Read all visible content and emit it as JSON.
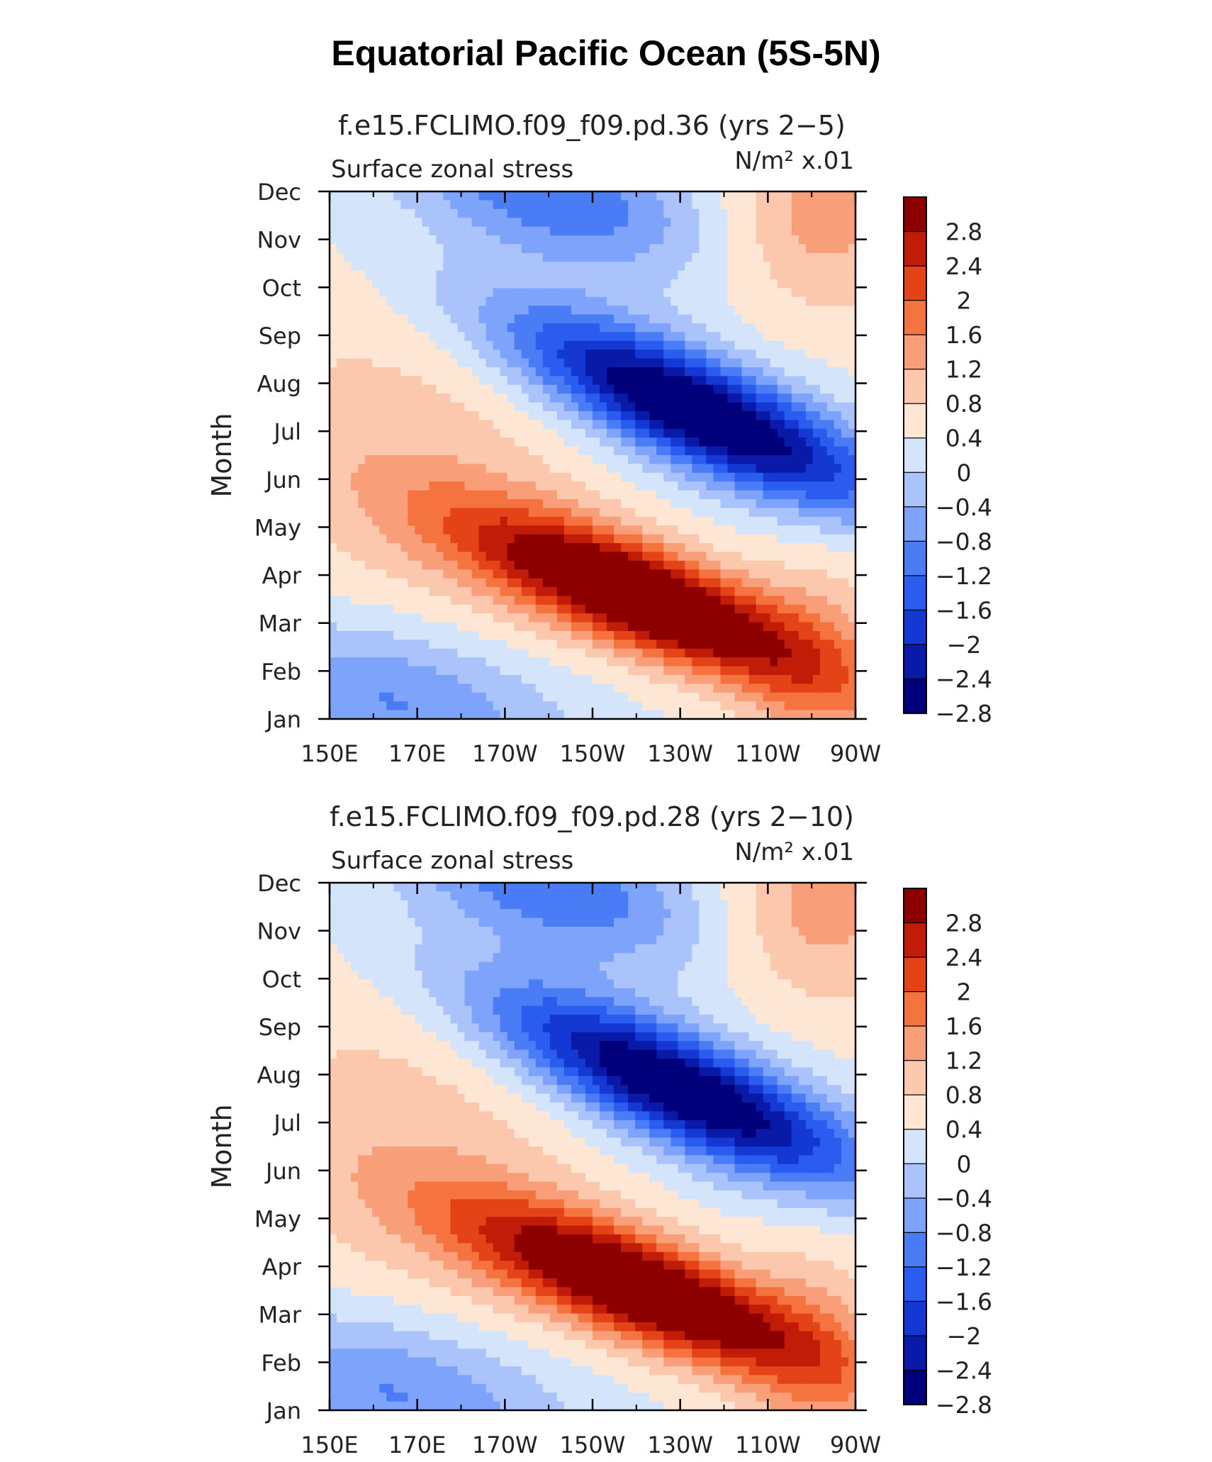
{
  "title": "Equatorial Pacific Ocean (5S-5N)",
  "colors": {
    "levels": [
      "#00007a",
      "#0a1aa8",
      "#1438d2",
      "#2a5cf0",
      "#4a7cf6",
      "#7da4fa",
      "#aac4fb",
      "#d4e5fb",
      "#fde6d4",
      "#fbc7ad",
      "#f89e78",
      "#f4733f",
      "#e44317",
      "#c01c08",
      "#8c0000"
    ]
  },
  "chart_data": [
    {
      "type": "heatmap",
      "title": "f.e15.FCLIMO.f09_f09.pd.36 (yrs 2−5)",
      "subtitle_left": "Surface zonal stress",
      "units": "N/m² x.01",
      "ylabel": "Month",
      "x_ticks": [
        "150E",
        "170E",
        "170W",
        "150W",
        "130W",
        "110W",
        "90W"
      ],
      "y_ticks": [
        "Jan",
        "Feb",
        "Mar",
        "Apr",
        "May",
        "Jun",
        "Jul",
        "Aug",
        "Sep",
        "Oct",
        "Nov",
        "Dec"
      ],
      "colorbar_levels": [
        "2.8",
        "2.4",
        "2",
        "1.6",
        "1.2",
        "0.8",
        "0.4",
        "0",
        "−0.4",
        "−0.8",
        "−1.2",
        "−1.6",
        "−2",
        "−2.4",
        "−2.8"
      ],
      "features": [
        {
          "name": "positive-max",
          "lon": 222,
          "month": 3.6,
          "value": 3.2
        },
        {
          "name": "negative-max",
          "lon": 235,
          "month": 7.4,
          "value": -3.2
        }
      ]
    },
    {
      "type": "heatmap",
      "title": "f.e15.FCLIMO.f09_f09.pd.28 (yrs 2−10)",
      "subtitle_left": "Surface zonal stress",
      "units": "N/m² x.01",
      "ylabel": "Month",
      "x_ticks": [
        "150E",
        "170E",
        "170W",
        "150W",
        "130W",
        "110W",
        "90W"
      ],
      "y_ticks": [
        "Jan",
        "Feb",
        "Mar",
        "Apr",
        "May",
        "Jun",
        "Jul",
        "Aug",
        "Sep",
        "Oct",
        "Nov",
        "Dec"
      ],
      "colorbar_levels": [
        "2.8",
        "2.4",
        "2",
        "1.6",
        "1.2",
        "0.8",
        "0.4",
        "0",
        "−0.4",
        "−0.8",
        "−1.2",
        "−1.6",
        "−2",
        "−2.4",
        "−2.8"
      ],
      "features": [
        {
          "name": "positive-max",
          "lon": 222,
          "month": 3.6,
          "value": 3.1
        },
        {
          "name": "negative-max",
          "lon": 230,
          "month": 7.8,
          "value": -3.1
        }
      ]
    }
  ]
}
